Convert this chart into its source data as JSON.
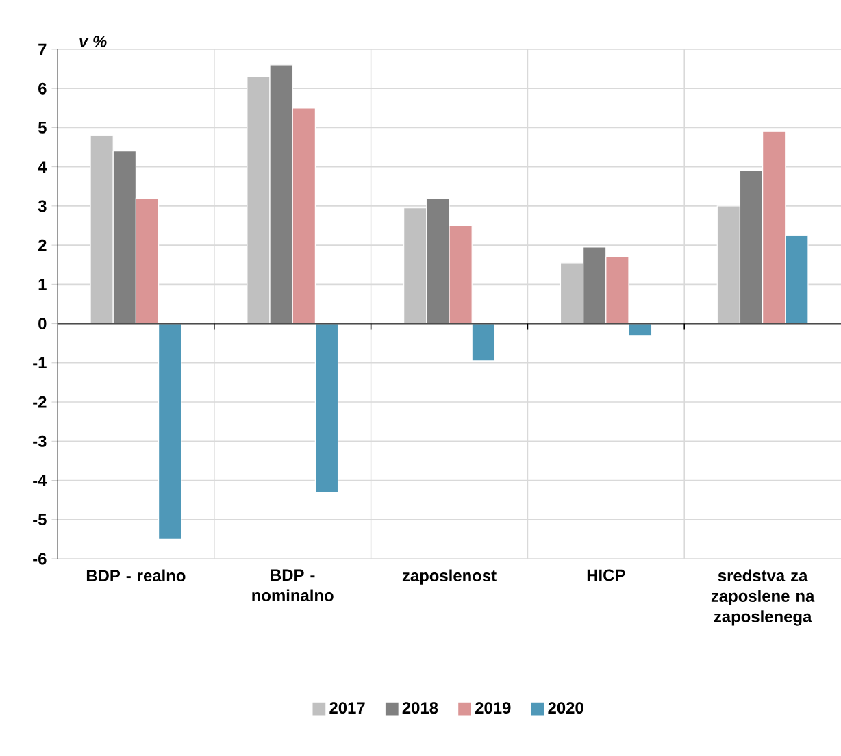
{
  "chart_data": {
    "type": "bar",
    "ylabel": "*v %*",
    "categories": [
      "BDP - realno",
      "BDP - nominalno",
      "zaposlenost",
      "HICP",
      "sredstva za zaposlene na zaposlenega"
    ],
    "series": [
      {
        "name": "2017",
        "color": "#c0c0c0",
        "values": [
          4.8,
          6.3,
          2.95,
          1.55,
          3.0
        ]
      },
      {
        "name": "2018",
        "color": "#808080",
        "values": [
          4.4,
          6.6,
          3.2,
          1.95,
          3.9
        ]
      },
      {
        "name": "2019",
        "color": "#db9595",
        "values": [
          3.2,
          5.5,
          2.5,
          1.7,
          4.9
        ]
      },
      {
        "name": "2020",
        "color": "#4f98b8",
        "values": [
          -5.5,
          -4.3,
          -0.95,
          -0.3,
          2.25
        ]
      }
    ],
    "ylim": [
      -6,
      7
    ],
    "yticks": [
      -6,
      -5,
      -4,
      -3,
      -2,
      -1,
      0,
      1,
      2,
      3,
      4,
      5,
      6,
      7
    ],
    "grid": true,
    "legend": "bottom"
  }
}
